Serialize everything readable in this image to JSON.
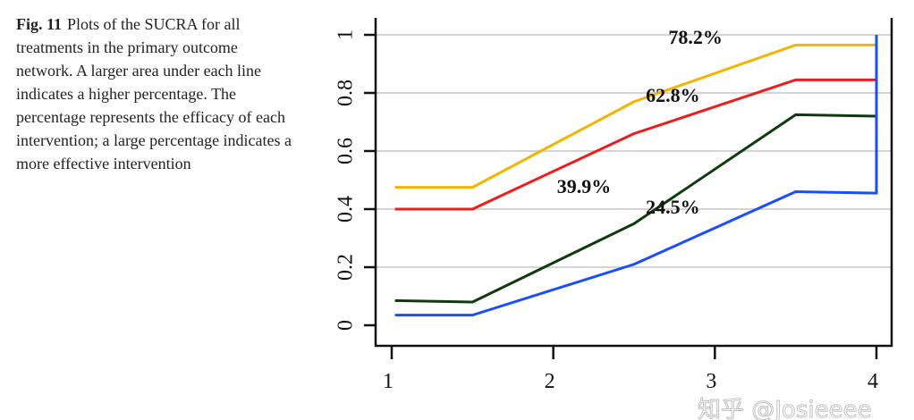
{
  "caption": {
    "label": "Fig. 11",
    "text": "Plots of the SUCRA for all treatments in the primary outcome network. A larger area under each line indicates a higher percentage. The percentage represents the efficacy of each intervention; a large percentage indicates a more effective intervention"
  },
  "watermark": "知乎 @Josieeee",
  "chart_data": {
    "type": "line",
    "title": "",
    "xlabel": "",
    "ylabel": "",
    "xlim": [
      1,
      4
    ],
    "ylim": [
      0,
      1
    ],
    "x_ticks": [
      "1",
      "2",
      "3",
      "4"
    ],
    "y_ticks": [
      "0",
      "0.2",
      "0.4",
      "0.6",
      "0.8",
      "1"
    ],
    "grid": "horizontal",
    "series": [
      {
        "color": "#f5b400",
        "label": "78.2%",
        "points": [
          [
            1.02,
            0.475
          ],
          [
            1.5,
            0.475
          ],
          [
            2.5,
            0.77
          ],
          [
            3.5,
            0.965
          ],
          [
            4,
            0.965
          ]
        ]
      },
      {
        "color": "#ee1c1c",
        "label": "62.8%",
        "points": [
          [
            1.02,
            0.4
          ],
          [
            1.5,
            0.4
          ],
          [
            2.5,
            0.66
          ],
          [
            3.5,
            0.845
          ],
          [
            4,
            0.845
          ]
        ]
      },
      {
        "color": "#0f3a0f",
        "label": "39.9%",
        "points": [
          [
            1.02,
            0.085
          ],
          [
            1.5,
            0.08
          ],
          [
            2.5,
            0.35
          ],
          [
            3.5,
            0.725
          ],
          [
            4,
            0.72
          ]
        ]
      },
      {
        "color": "#1a4dff",
        "label": "24.5%",
        "points": [
          [
            1.02,
            0.035
          ],
          [
            1.5,
            0.035
          ],
          [
            2.5,
            0.21
          ],
          [
            3.5,
            0.46
          ],
          [
            4,
            0.455
          ],
          [
            4,
            1.0
          ]
        ]
      }
    ]
  }
}
